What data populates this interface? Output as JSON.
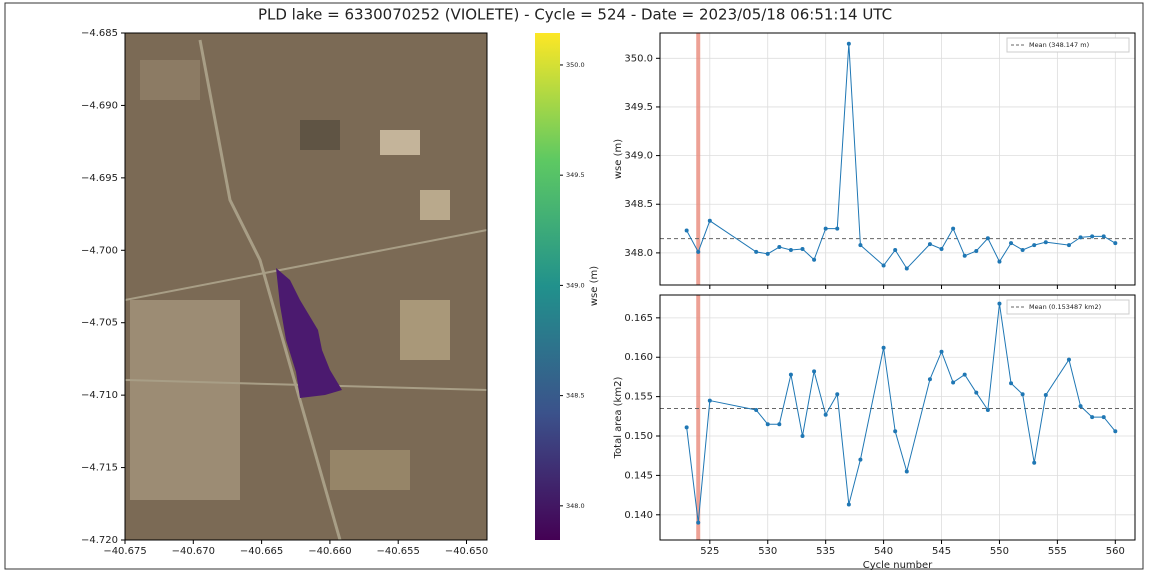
{
  "title": "PLD lake = 6330070252 (VIOLETE) - Cycle = 524 - Date = 2023/05/18 06:51:14 UTC",
  "chart_data": [
    {
      "type": "map",
      "xlim": [
        -40.675,
        -40.6485
      ],
      "ylim": [
        -4.72,
        -4.685
      ],
      "xticks": [
        {
          "value": -40.675,
          "label": "−40.675"
        },
        {
          "value": -40.67,
          "label": "−40.670"
        },
        {
          "value": -40.665,
          "label": "−40.665"
        },
        {
          "value": -40.66,
          "label": "−40.660"
        },
        {
          "value": -40.655,
          "label": "−40.655"
        },
        {
          "value": -40.65,
          "label": "−40.650"
        }
      ],
      "yticks": [
        {
          "value": -4.685,
          "label": "−4.685"
        },
        {
          "value": -4.69,
          "label": "−4.690"
        },
        {
          "value": -4.695,
          "label": "−4.695"
        },
        {
          "value": -4.7,
          "label": "−4.700"
        },
        {
          "value": -4.705,
          "label": "−4.705"
        },
        {
          "value": -4.71,
          "label": "−4.710"
        },
        {
          "value": -4.715,
          "label": "−4.715"
        },
        {
          "value": -4.72,
          "label": "−4.720"
        }
      ],
      "colorbar": {
        "label": "wse (m)",
        "lim": [
          347.845,
          350.145
        ],
        "ticks": [
          {
            "value": 348,
            "label": "348.0"
          },
          348.5,
          {
            "value": 349,
            "label": "349.0"
          },
          349.5,
          {
            "value": 350,
            "label": "350.0"
          }
        ]
      }
    },
    {
      "type": "line",
      "ylabel": "wse (m)",
      "color": "#1f77b4",
      "grid": true,
      "x": [
        523,
        524,
        525,
        529,
        530,
        531,
        532,
        533,
        534,
        535,
        536,
        537,
        538,
        540,
        541,
        542,
        544,
        545,
        546,
        547,
        548,
        549,
        550,
        551,
        552,
        553,
        554,
        556,
        557,
        558,
        559,
        560
      ],
      "values": [
        348.23,
        348.01,
        348.33,
        348.01,
        347.99,
        348.06,
        348.03,
        348.04,
        347.93,
        348.25,
        348.25,
        350.15,
        348.08,
        347.87,
        348.03,
        347.84,
        348.09,
        348.04,
        348.25,
        347.97,
        348.02,
        348.15,
        347.91,
        348.1,
        348.03,
        348.08,
        348.11,
        348.08,
        348.16,
        348.17,
        348.17,
        348.1
      ],
      "xlim": [
        520.7,
        561.7
      ],
      "ylim": [
        347.67,
        350.26
      ],
      "xticks": [
        525,
        530,
        535,
        540,
        545,
        550,
        555,
        560
      ],
      "yticks": [
        {
          "value": 348,
          "label": "348.0"
        },
        348.5,
        {
          "value": 349,
          "label": "349.0"
        },
        349.5,
        {
          "value": 350,
          "label": "350.0"
        }
      ],
      "highlight_x": 524,
      "mean": {
        "label": "Mean (348.147 m)",
        "value": 348.147
      }
    },
    {
      "type": "line",
      "ylabel": "Total area (km2)",
      "xlabel": "Cycle number",
      "color": "#1f77b4",
      "grid": true,
      "x": [
        523,
        524,
        525,
        529,
        530,
        531,
        532,
        533,
        534,
        535,
        536,
        537,
        538,
        540,
        541,
        542,
        544,
        545,
        546,
        547,
        548,
        549,
        550,
        551,
        552,
        553,
        554,
        556,
        557,
        558,
        559,
        560
      ],
      "values": [
        0.1511,
        0.139,
        0.1545,
        0.1533,
        0.1515,
        0.1515,
        0.1578,
        0.15,
        0.1582,
        0.1527,
        0.1553,
        0.1413,
        0.147,
        0.1612,
        0.1506,
        0.1455,
        0.1572,
        0.1607,
        0.1568,
        0.1578,
        0.1555,
        0.1533,
        0.1668,
        0.1567,
        0.1553,
        0.1466,
        0.1552,
        0.1597,
        0.1538,
        0.1524,
        0.1524,
        0.1506
      ],
      "xlim": [
        520.7,
        561.7
      ],
      "ylim": [
        0.1368,
        0.1679
      ],
      "xticks": [
        525,
        530,
        535,
        540,
        545,
        550,
        555,
        560
      ],
      "yticks": [
        {
          "value": 0.14,
          "label": "0.140"
        },
        0.145,
        {
          "value": 0.15,
          "label": "0.150"
        },
        0.155,
        {
          "value": 0.16,
          "label": "0.160"
        },
        0.165
      ],
      "highlight_x": 524,
      "mean": {
        "label": "Mean (0.153487 km2)",
        "value": 0.153487
      }
    }
  ]
}
